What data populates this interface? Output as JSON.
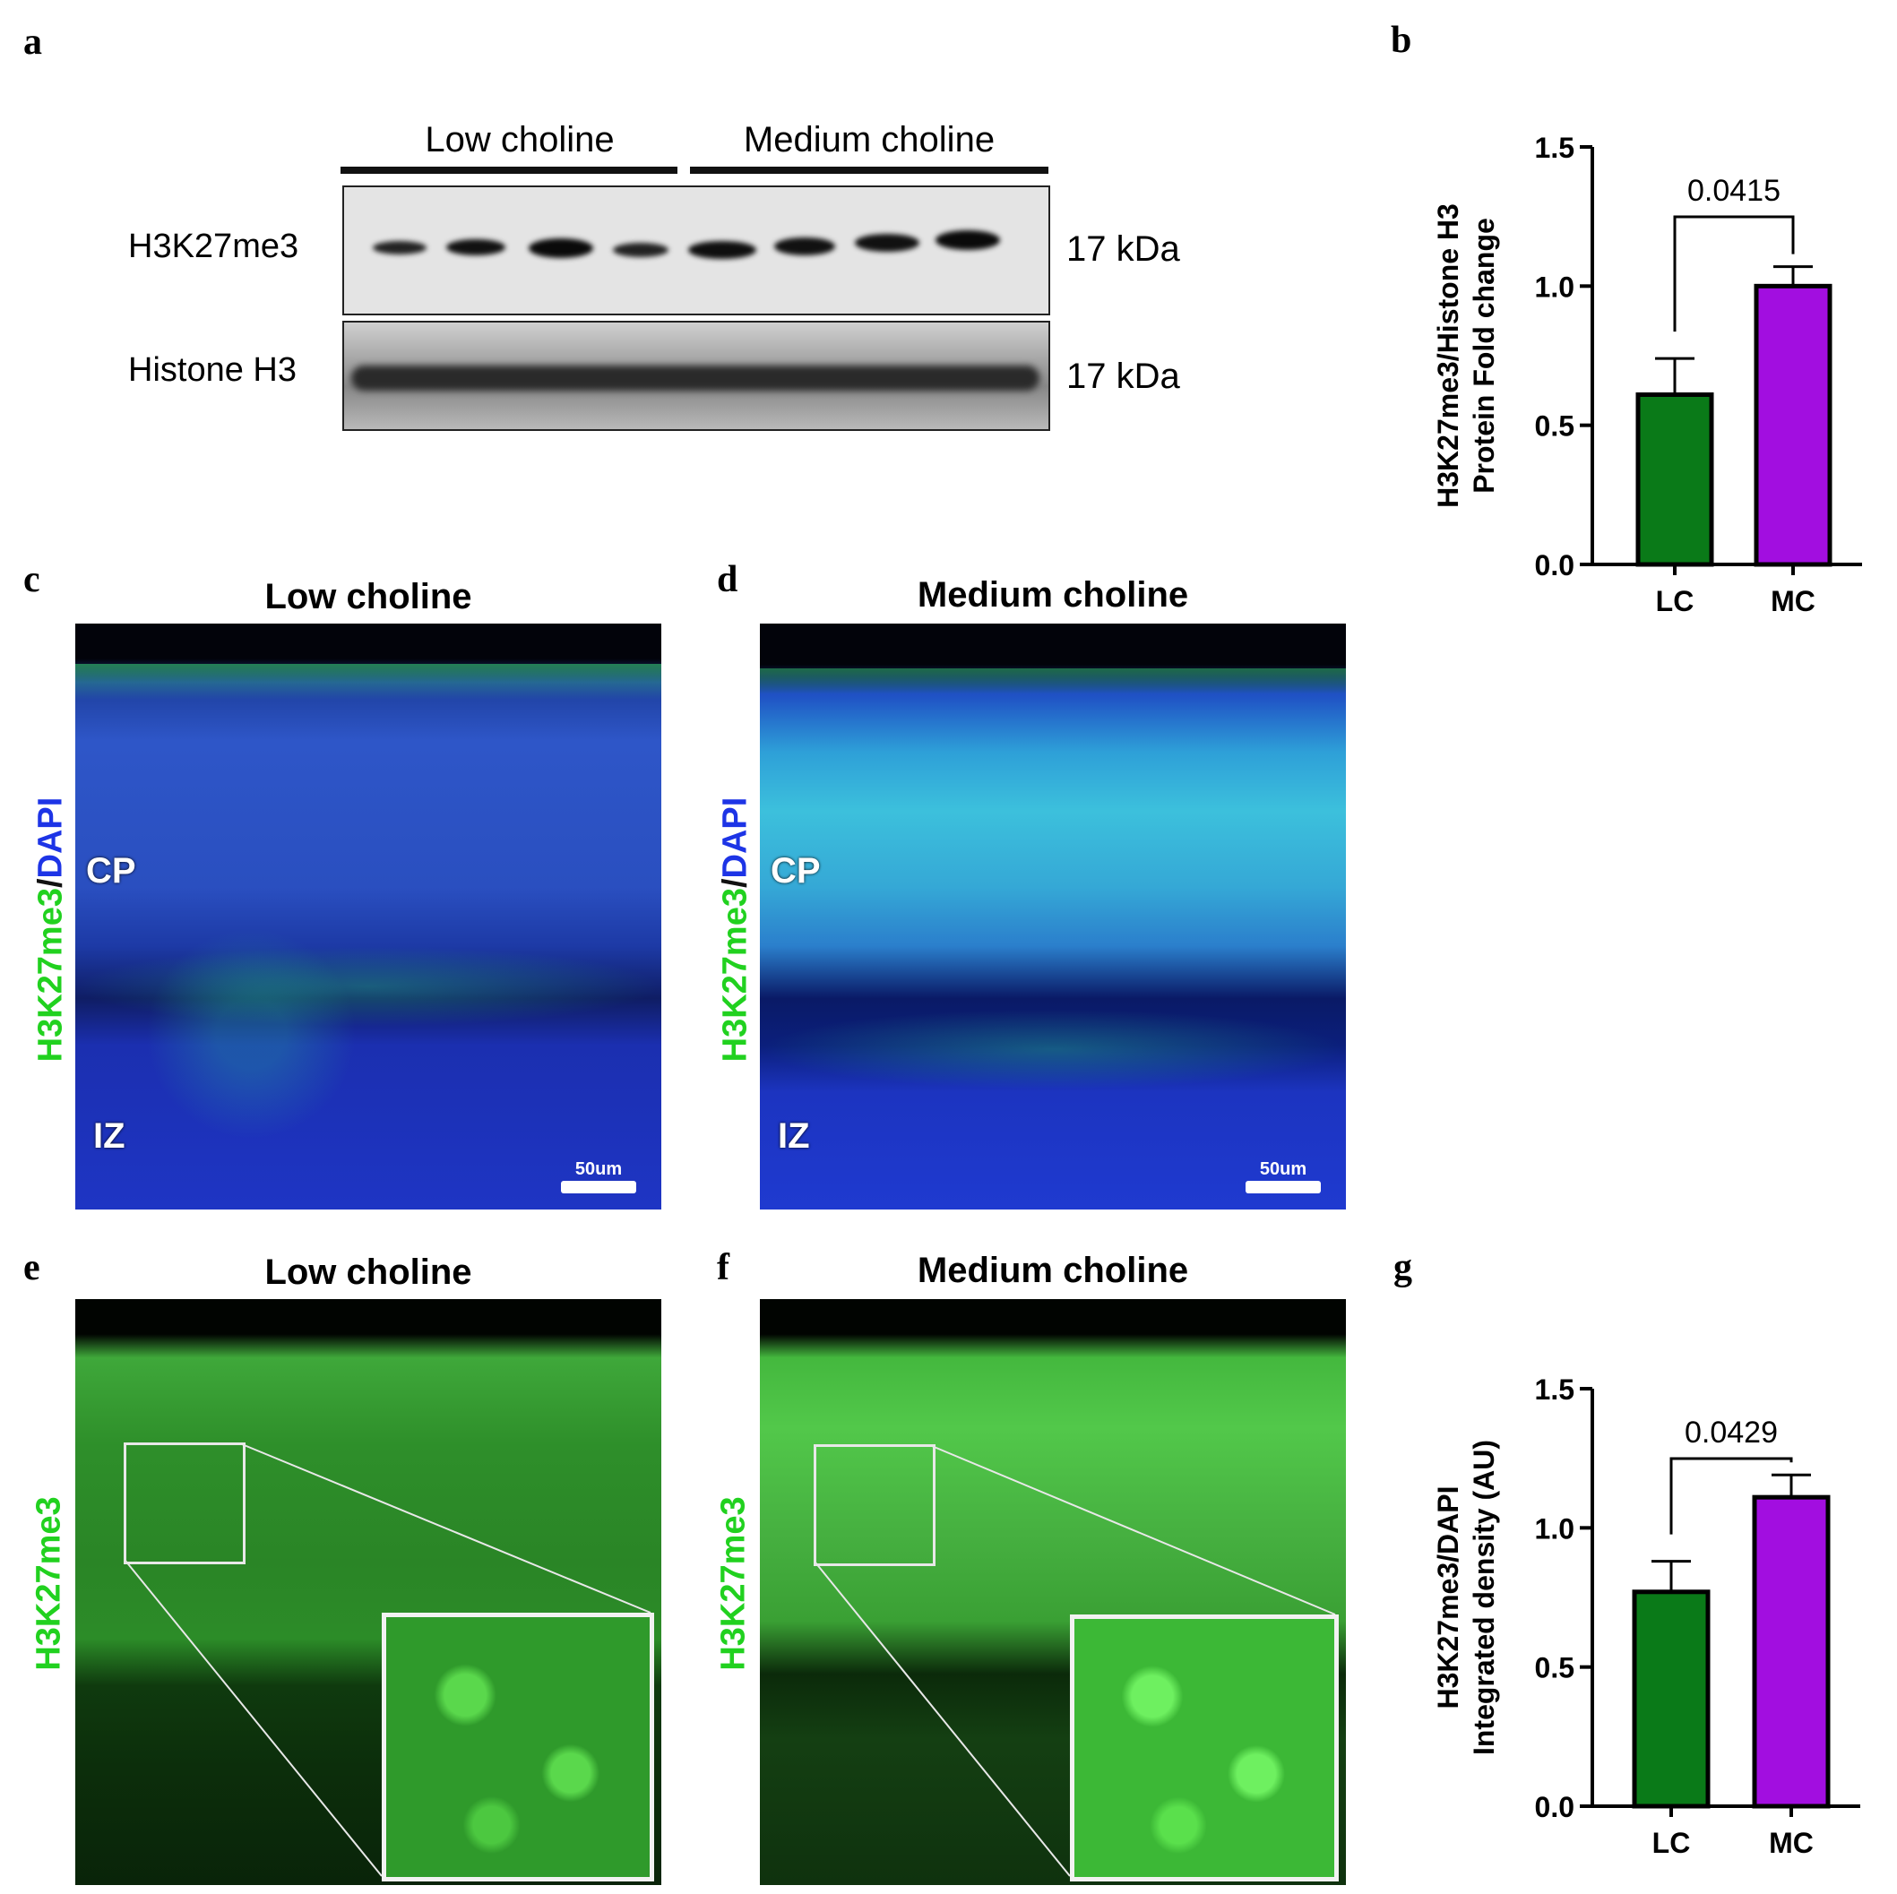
{
  "panel_labels": {
    "a": "a",
    "b": "b",
    "c": "c",
    "d": "d",
    "e": "e",
    "f": "f",
    "g": "g"
  },
  "blot": {
    "group_low": "Low choline",
    "group_medium": "Medium choline",
    "row1_label": "H3K27me3",
    "row2_label": "Histone H3",
    "row1_size": "17 kDa",
    "row2_size": "17 kDa"
  },
  "micrographs": {
    "c_title": "Low choline",
    "d_title": "Medium choline",
    "e_title": "Low choline",
    "f_title": "Medium choline",
    "stain_green": "H3K27me3",
    "stain_sep": "/",
    "stain_blue": "DAPI",
    "stain_single": "H3K27me3",
    "zone_cp": "CP",
    "zone_iz": "IZ",
    "scale_label": "50um"
  },
  "colors": {
    "lc_bar": "#0a7a18",
    "mc_bar": "#a20ee0",
    "green_stain": "#21d11f",
    "blue_stain": "#1d34e6"
  },
  "chart_data": [
    {
      "panel": "b",
      "type": "bar",
      "categories": [
        "LC",
        "MC"
      ],
      "values": [
        0.61,
        1.0
      ],
      "errors": [
        0.13,
        0.07
      ],
      "ylabel_line1": "H3K27me3/Histone H3",
      "ylabel_line2": "Protein Fold change",
      "ylim": [
        0,
        1.5
      ],
      "yticks": [
        "0.0",
        "0.5",
        "1.0",
        "1.5"
      ],
      "p_value": "0.0415"
    },
    {
      "panel": "g",
      "type": "bar",
      "categories": [
        "LC",
        "MC"
      ],
      "values": [
        0.77,
        1.11
      ],
      "errors": [
        0.11,
        0.08
      ],
      "ylabel_line1": "H3K27me3/DAPI",
      "ylabel_line2": "Integrated density (AU)",
      "ylim": [
        0,
        1.5
      ],
      "yticks": [
        "0.0",
        "0.5",
        "1.0",
        "1.5"
      ],
      "p_value": "0.0429"
    }
  ]
}
